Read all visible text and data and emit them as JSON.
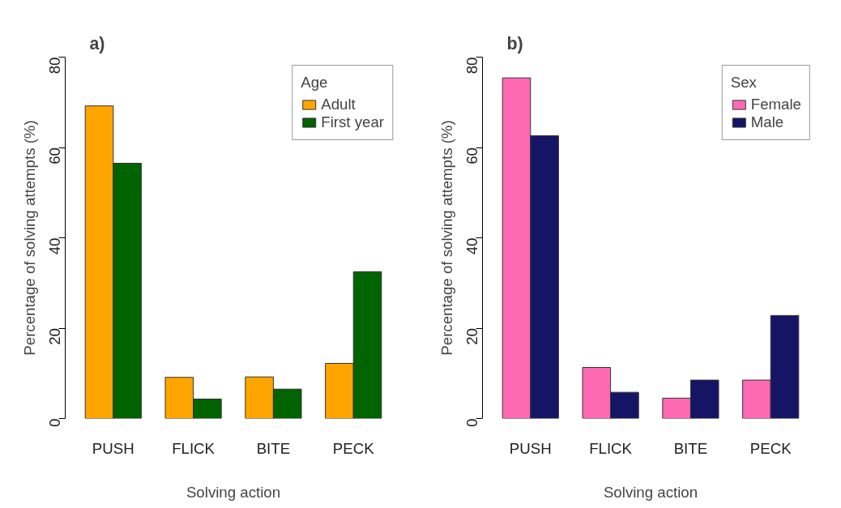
{
  "chart_data": [
    {
      "type": "bar",
      "title": "a)",
      "xlabel": "Solving action",
      "ylabel": "Percentage of solving attempts (%)",
      "legend_title": "Age",
      "legend": "top right",
      "grid": false,
      "categories": [
        "PUSH",
        "FLICK",
        "BITE",
        "PECK"
      ],
      "ylim": [
        0,
        80
      ],
      "yticks": [
        0,
        20,
        40,
        60,
        80
      ],
      "series": [
        {
          "name": "Adult",
          "color": "#ffa500",
          "values": [
            69.2,
            9.1,
            9.2,
            12.2
          ]
        },
        {
          "name": "First year",
          "color": "#006400",
          "values": [
            56.5,
            4.3,
            6.5,
            32.5
          ]
        }
      ]
    },
    {
      "type": "bar",
      "title": "b)",
      "xlabel": "Solving action",
      "ylabel": "Percentage of solving attempts (%)",
      "legend_title": "Sex",
      "legend": "top right",
      "grid": false,
      "categories": [
        "PUSH",
        "FLICK",
        "BITE",
        "PECK"
      ],
      "ylim": [
        0,
        80
      ],
      "yticks": [
        0,
        20,
        40,
        60,
        80
      ],
      "series": [
        {
          "name": "Female",
          "color": "#ff69b4",
          "values": [
            75.4,
            11.3,
            4.5,
            8.5
          ]
        },
        {
          "name": "Male",
          "color": "#151566",
          "values": [
            62.6,
            5.8,
            8.5,
            22.8
          ]
        }
      ]
    }
  ]
}
